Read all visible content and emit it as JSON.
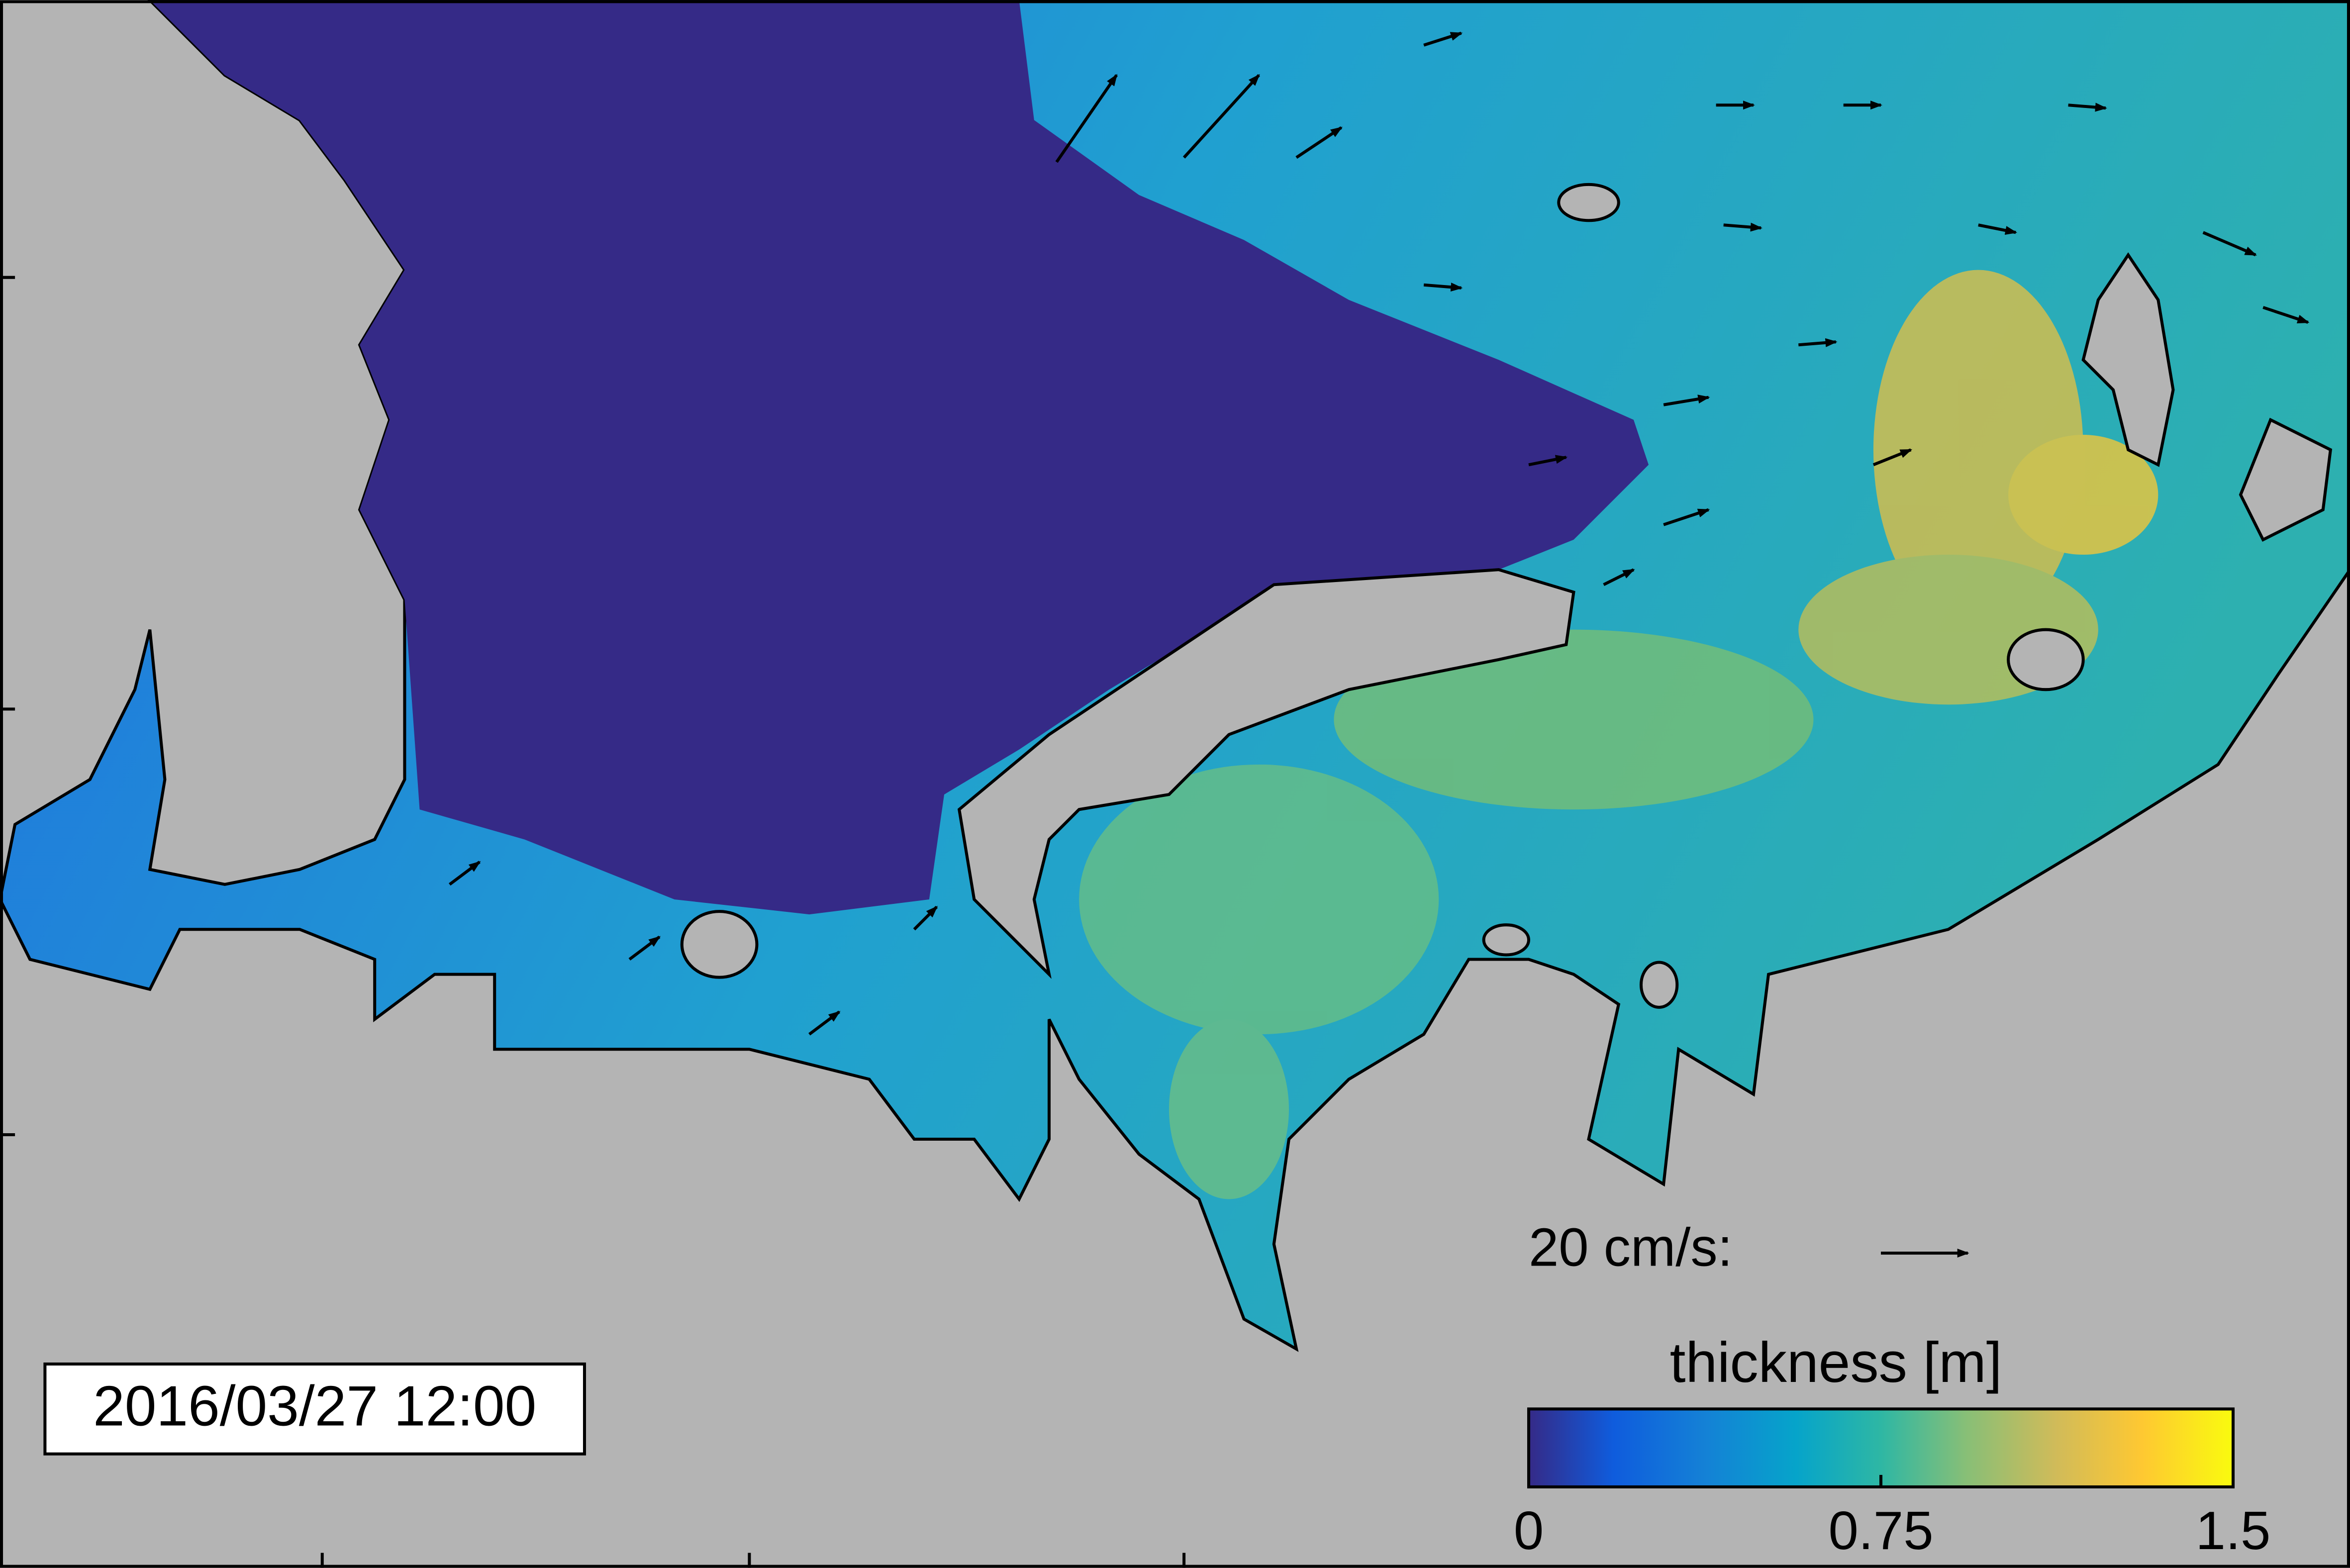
{
  "timestamp": "2016/03/27 12:00",
  "velocity_scale": {
    "label": "20 cm/s:"
  },
  "colorbar": {
    "label": "thickness [m]",
    "lim": [
      0,
      1.5
    ],
    "ticks": [
      0,
      0.75,
      1.5
    ]
  }
}
